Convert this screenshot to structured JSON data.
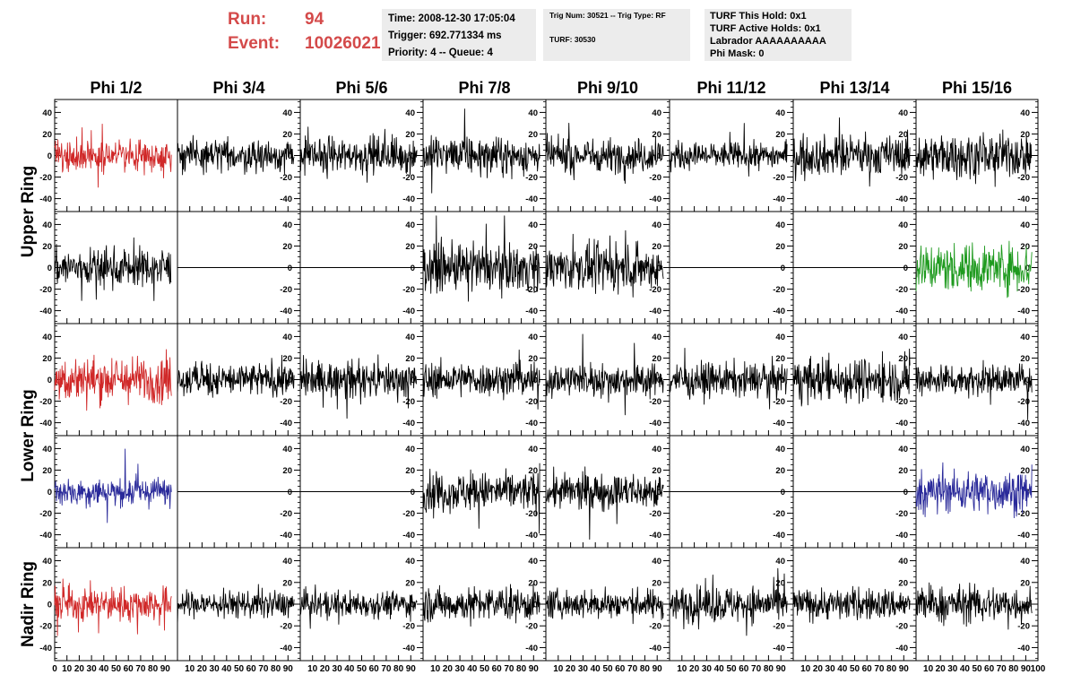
{
  "header": {
    "run_label": "Run:",
    "run_value": "94",
    "event_label": "Event:",
    "event_value": "10026021"
  },
  "time_box": {
    "time": "Time: 2008-12-30 17:05:04",
    "trigger": "Trigger: 692.771334 ms",
    "priority": "Priority: 4 -- Queue: 4"
  },
  "trig_box": {
    "trig": "Trig Num: 30521 -- Trig Type: RF",
    "turf": "TURF: 30530"
  },
  "turf_box": {
    "hold": "TURF This Hold: 0x1",
    "active": "TURF Active Holds: 0x1",
    "labrador": "Labrador AAAAAAAAAA",
    "phimask": "Phi Mask: 0"
  },
  "chart_data": {
    "type": "line",
    "columns": [
      "Phi 1/2",
      "Phi 3/4",
      "Phi 5/6",
      "Phi 7/8",
      "Phi 9/10",
      "Phi 11/12",
      "Phi 13/14",
      "Phi 15/16"
    ],
    "ring_labels": [
      "Upper Ring",
      "Lower Ring",
      "Nadir Ring"
    ],
    "xlim": [
      0,
      100
    ],
    "ylim": [
      -52,
      52
    ],
    "x_ticks": [
      0,
      10,
      20,
      30,
      40,
      50,
      60,
      70,
      80,
      90,
      100
    ],
    "y_ticks": [
      -40,
      -20,
      0,
      20,
      40
    ],
    "samples_x_range": [
      0,
      95
    ],
    "colors": {
      "trace": "#000000",
      "red": "#d02828",
      "green": "#1e9a1e",
      "blue": "#2a2a9a"
    },
    "panel_rows": [
      [
        {
          "color": "red",
          "amp": 13
        },
        {
          "color": "black",
          "amp": 13
        },
        {
          "color": "black",
          "amp": 15
        },
        {
          "color": "black",
          "amp": 15
        },
        {
          "color": "black",
          "amp": 14
        },
        {
          "color": "black",
          "amp": 11
        },
        {
          "color": "black",
          "amp": 16
        },
        {
          "color": "black",
          "amp": 18
        }
      ],
      [
        {
          "color": "black",
          "amp": 16
        },
        {
          "color": "flat",
          "amp": 0
        },
        {
          "color": "flat",
          "amp": 0
        },
        {
          "color": "black",
          "amp": 19
        },
        {
          "color": "black",
          "amp": 18
        },
        {
          "color": "flat",
          "amp": 0
        },
        {
          "color": "flat",
          "amp": 0
        },
        {
          "color": "green",
          "amp": 20
        }
      ],
      [
        {
          "color": "red",
          "amp": 19
        },
        {
          "color": "black",
          "amp": 14
        },
        {
          "color": "black",
          "amp": 15
        },
        {
          "color": "black",
          "amp": 14
        },
        {
          "color": "black",
          "amp": 14
        },
        {
          "color": "black",
          "amp": 14
        },
        {
          "color": "black",
          "amp": 18
        },
        {
          "color": "black",
          "amp": 13
        }
      ],
      [
        {
          "color": "blue",
          "amp": 12
        },
        {
          "color": "flat",
          "amp": 0
        },
        {
          "color": "flat",
          "amp": 0
        },
        {
          "color": "black",
          "amp": 16
        },
        {
          "color": "black",
          "amp": 15
        },
        {
          "color": "flat",
          "amp": 0
        },
        {
          "color": "flat",
          "amp": 0
        },
        {
          "color": "blue",
          "amp": 17
        }
      ],
      [
        {
          "color": "red",
          "amp": 14
        },
        {
          "color": "black",
          "amp": 11
        },
        {
          "color": "black",
          "amp": 11
        },
        {
          "color": "black",
          "amp": 14
        },
        {
          "color": "black",
          "amp": 12
        },
        {
          "color": "black",
          "amp": 15
        },
        {
          "color": "black",
          "amp": 13
        },
        {
          "color": "black",
          "amp": 15
        }
      ]
    ]
  }
}
